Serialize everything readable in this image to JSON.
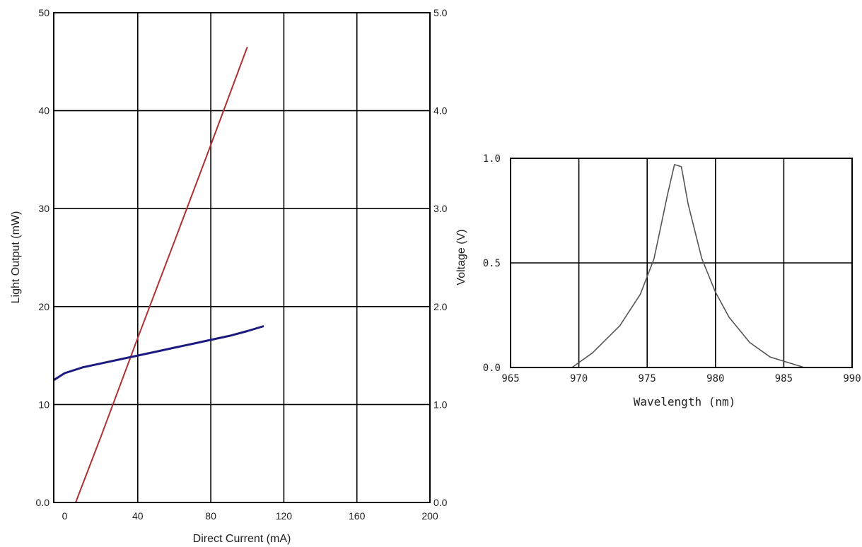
{
  "chart_data": [
    {
      "type": "line",
      "title": "",
      "xlabel": "Direct Current (mA)",
      "ylabel": "Light Output (mW)",
      "y2label": "Voltage (V)",
      "xlim": [
        -6,
        200
      ],
      "ylim": [
        0,
        50
      ],
      "y2lim": [
        0,
        5
      ],
      "x_ticks": [
        "0",
        "40",
        "80",
        "120",
        "160",
        "200"
      ],
      "y_ticks": [
        "0.0",
        "10",
        "20",
        "30",
        "40",
        "50"
      ],
      "y2_ticks": [
        "0.0",
        "1.0",
        "2.0",
        "3.0",
        "4.0",
        "5.0"
      ],
      "grid": true,
      "series": [
        {
          "axis": "left",
          "color": "#b03030",
          "x": [
            -6,
            0,
            6,
            20,
            40,
            60,
            80,
            100
          ],
          "y": [
            0,
            0,
            0,
            6.8,
            16.8,
            26.6,
            36.5,
            46.5
          ]
        },
        {
          "axis": "right",
          "color": "#1c1c80",
          "x": [
            -6,
            0,
            10,
            20,
            30,
            40,
            50,
            60,
            70,
            80,
            90,
            100,
            109
          ],
          "y": [
            1.25,
            1.32,
            1.38,
            1.42,
            1.46,
            1.5,
            1.54,
            1.58,
            1.62,
            1.66,
            1.7,
            1.75,
            1.8
          ]
        }
      ]
    },
    {
      "type": "line",
      "title": "",
      "xlabel": "Wavelength (nm)",
      "ylabel": "",
      "xlim": [
        965,
        990
      ],
      "ylim": [
        0,
        1
      ],
      "x_ticks": [
        "965",
        "970",
        "975",
        "980",
        "985",
        "990"
      ],
      "y_ticks": [
        "0.0",
        "0.5",
        "1.0"
      ],
      "grid": true,
      "series": [
        {
          "color": "#555555",
          "x": [
            969.5,
            971,
            973,
            974.5,
            975.5,
            976.5,
            977,
            977.5,
            978,
            979,
            980,
            981,
            982.5,
            984,
            986.5
          ],
          "y": [
            0.0,
            0.07,
            0.2,
            0.35,
            0.52,
            0.83,
            0.97,
            0.96,
            0.78,
            0.52,
            0.36,
            0.24,
            0.12,
            0.05,
            0.0
          ]
        }
      ]
    }
  ]
}
